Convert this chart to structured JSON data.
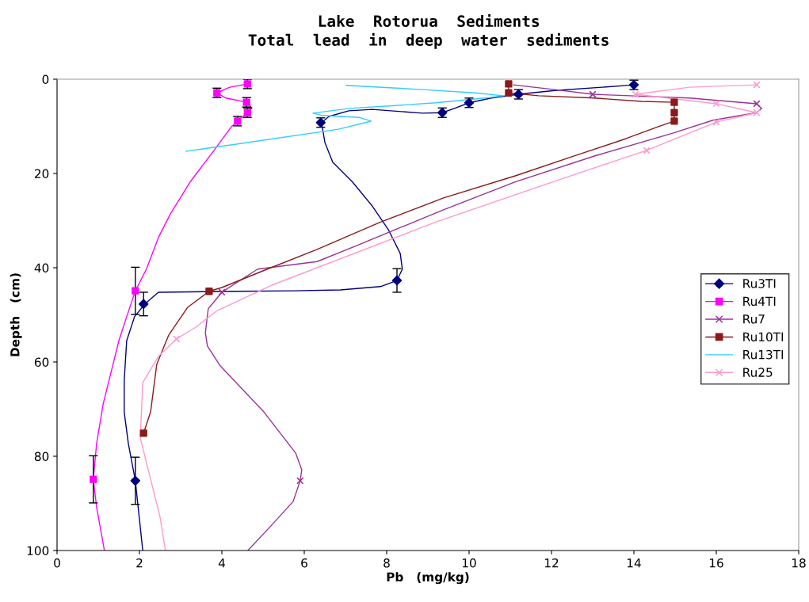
{
  "chart_data": {
    "type": "line",
    "title": "Lake  Rotorua  Sediments",
    "subtitle": "Total  lead  in  deep  water  sediments",
    "xlabel": "Pb   (mg/kg)",
    "ylabel": "Depth   (cm)",
    "xlim": [
      0,
      18
    ],
    "xticks": [
      0,
      2,
      4,
      6,
      8,
      10,
      12,
      14,
      16,
      18
    ],
    "ylim": [
      100,
      0
    ],
    "yticks": [
      0,
      20,
      40,
      60,
      80,
      100
    ],
    "grid": false,
    "legend": "right",
    "series": [
      {
        "name": "Ru3TI",
        "color": "#000080",
        "x": [
          14.0,
          13.23,
          12.08,
          11.19,
          10.54,
          10.0,
          9.67,
          9.35,
          8.87,
          7.65,
          7.08,
          6.6,
          6.42,
          6.5,
          6.69,
          7.17,
          7.65,
          8.04,
          8.33,
          8.38,
          8.25,
          7.85,
          6.88,
          5.73,
          4.38,
          2.46,
          2.37,
          2.13,
          1.88,
          1.69,
          1.63,
          1.63,
          1.73,
          1.9,
          2.08
        ],
        "values": [
          1.2,
          1.7,
          2.4,
          3.2,
          4.0,
          5.0,
          6.1,
          7.1,
          7.2,
          6.4,
          6.7,
          7.9,
          9.2,
          13.4,
          17.6,
          21.8,
          26.9,
          31.9,
          37.0,
          40.3,
          42.7,
          44.0,
          44.7,
          44.9,
          45.0,
          45.2,
          45.9,
          47.7,
          50.4,
          55.5,
          63.9,
          70.6,
          77.3,
          85.2,
          100
        ]
      },
      {
        "type": "scatter",
        "color": "#000080",
        "marker": "diamond",
        "x": [
          14.0,
          11.2,
          10.0,
          9.35,
          6.4,
          8.25,
          2.1,
          1.9
        ],
        "values": [
          1.2,
          3.2,
          5.0,
          7.1,
          9.2,
          42.7,
          47.7,
          85.2
        ],
        "errors": [
          1,
          1,
          1,
          1,
          1,
          2.5,
          2.5,
          5
        ]
      },
      {
        "name": "Ru4TI",
        "color": "#ff00ff",
        "x": [
          4.62,
          4.19,
          3.88,
          4.1,
          4.6,
          4.73,
          4.62,
          4.38,
          4.23,
          3.81,
          3.23,
          2.75,
          2.46,
          2.17,
          1.9,
          1.69,
          1.5,
          1.31,
          1.12,
          0.96,
          0.88,
          0.96,
          1.15
        ],
        "values": [
          1.0,
          1.7,
          2.9,
          4.0,
          4.9,
          6.1,
          7.1,
          8.9,
          10.1,
          15.1,
          21.8,
          28.6,
          33.6,
          40.3,
          44.9,
          50.4,
          55.5,
          62.2,
          68.9,
          77.3,
          84.9,
          90.8,
          100
        ]
      },
      {
        "type": "scatter",
        "color": "#ff00ff",
        "marker": "square",
        "x": [
          4.62,
          3.88,
          4.6,
          4.62,
          4.38,
          1.9,
          0.88
        ],
        "values": [
          1.0,
          2.9,
          4.9,
          7.1,
          8.9,
          44.9,
          84.9
        ],
        "errors": [
          1,
          1,
          1,
          1,
          1,
          5,
          5
        ]
      },
      {
        "name": "Ru7",
        "color": "#993399",
        "x": [
          11.08,
          12.08,
          13.0,
          15.35,
          16.98,
          17.1,
          16.98,
          15.92,
          14.96,
          13.04,
          11.12,
          9.38,
          7.27,
          6.31,
          4.87,
          4.0,
          3.67,
          3.6,
          3.65,
          3.96,
          5.02,
          5.79,
          5.94,
          5.9,
          5.73,
          5.21,
          4.63
        ],
        "values": [
          1.2,
          2.2,
          3.2,
          4.0,
          5.2,
          6.2,
          7.1,
          8.7,
          11.4,
          16.3,
          21.8,
          27.7,
          35.3,
          38.7,
          40.3,
          45.2,
          48.7,
          53.8,
          56.6,
          60.8,
          70.6,
          79.3,
          82.9,
          85.2,
          89.6,
          94.6,
          100
        ]
      },
      {
        "type": "scatter",
        "color": "#993399",
        "marker": "cross",
        "x": [
          13.0,
          16.98,
          4.0,
          5.9
        ],
        "values": [
          3.2,
          5.2,
          45.2,
          85.2
        ]
      },
      {
        "name": "Ru10TI",
        "color": "#8b1a1a",
        "x": [
          10.96,
          10.96,
          11.69,
          13.04,
          14.19,
          14.98,
          14.98,
          14.98,
          14.58,
          13.81,
          12.65,
          11.12,
          9.38,
          7.85,
          6.31,
          4.96,
          4.0,
          3.69,
          3.17,
          2.71,
          2.42,
          2.27,
          2.1
        ],
        "values": [
          1.0,
          2.9,
          3.5,
          4.0,
          4.7,
          4.9,
          7.1,
          8.9,
          10.1,
          12.6,
          16.0,
          20.5,
          25.2,
          30.3,
          36.1,
          40.8,
          44.2,
          45.0,
          48.4,
          54.3,
          60.5,
          70.6,
          75.1
        ]
      },
      {
        "type": "scatter",
        "color": "#8b1a1a",
        "marker": "square",
        "x": [
          10.96,
          10.96,
          14.98,
          14.98,
          14.98,
          3.69,
          2.1
        ],
        "values": [
          1.0,
          2.9,
          4.9,
          7.1,
          8.9,
          45.0,
          75.1
        ]
      },
      {
        "name": "Ru13TI",
        "color": "#33ccff",
        "x": [
          7.02,
          8.87,
          10.15,
          10.83,
          10.48,
          9.19,
          8.37,
          7.08,
          6.21,
          6.44,
          7.33,
          7.62,
          6.83,
          4.25,
          3.13
        ],
        "values": [
          1.3,
          2.2,
          2.9,
          3.5,
          3.9,
          5.0,
          5.5,
          6.2,
          7.2,
          7.7,
          8.1,
          8.9,
          10.6,
          13.9,
          15.3
        ]
      },
      {
        "name": "Ru25",
        "color": "#ff99cc",
        "x": [
          16.98,
          15.35,
          14.04,
          16.0,
          16.98,
          16.0,
          14.31,
          12.4,
          9.19,
          5.21,
          3.87,
          3.37,
          2.9,
          2.46,
          2.08,
          2.02,
          2.5,
          2.63
        ],
        "values": [
          1.2,
          1.7,
          3.2,
          5.2,
          7.1,
          9.1,
          15.1,
          20.7,
          30.3,
          43.7,
          49.2,
          52.6,
          55.1,
          58.8,
          64.4,
          76.1,
          92.9,
          100
        ]
      },
      {
        "type": "scatter",
        "color": "#ff99cc",
        "marker": "cross",
        "x": [
          16.98,
          14.04,
          16.0,
          16.98,
          16.0,
          14.31,
          2.9
        ],
        "values": [
          1.2,
          3.2,
          5.2,
          7.1,
          9.1,
          15.1,
          55.1
        ]
      }
    ]
  }
}
